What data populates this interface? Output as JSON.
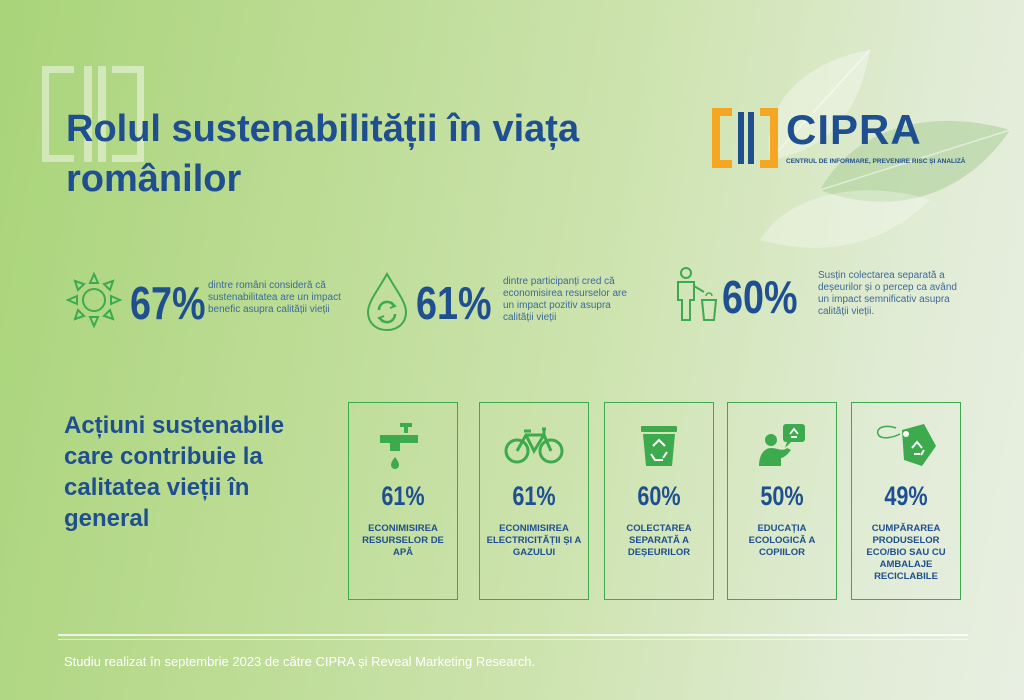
{
  "title": "Rolul sustenabilității în viața românilor",
  "logo": {
    "name": "CIPRA",
    "subtitle": "CENTRUL DE INFORMARE, PREVENIRE RISC ȘI ANALIZĂ"
  },
  "stats": [
    {
      "value": "67%",
      "icon": "sun-icon",
      "text": "dintre români consideră că sustenabilitatea are un impact benefic asupra calității vieții"
    },
    {
      "value": "61%",
      "icon": "water-drop-recycle-icon",
      "text": "dintre participanți cred că economisirea resurselor are un impact pozitiv asupra calității vieții"
    },
    {
      "value": "60%",
      "icon": "person-recycling-bin-icon",
      "text": "Susțin colectarea separată a deșeurilor și o percep ca având un impact semnificativ asupra calității vieții."
    }
  ],
  "section_title": "Acțiuni sustenabile care contribuie la calitatea vieții în general",
  "actions": [
    {
      "value": "61%",
      "icon": "water-tap-icon",
      "label": "ECONIMISIREA RESURSELOR DE APĂ"
    },
    {
      "value": "61%",
      "icon": "bicycle-icon",
      "label": "ECONIMISIREA ELECTRICITĂȚII ȘI A GAZULUI"
    },
    {
      "value": "60%",
      "icon": "recycle-bin-icon",
      "label": "COLECTAREA SEPARATĂ A DEȘEURILOR"
    },
    {
      "value": "50%",
      "icon": "education-recycle-icon",
      "label": "EDUCAȚIA ECOLOGICĂ A COPIILOR"
    },
    {
      "value": "49%",
      "icon": "eco-tag-icon",
      "label": "CUMPĂRAREA PRODUSELOR ECO/BIO SAU CU AMBALAJE RECICLABILE"
    }
  ],
  "footer": "Studiu realizat în septembrie 2023 de către CIPRA și Reveal Marketing Research.",
  "colors": {
    "primary": "#1f4f8f",
    "green": "#3daa4e",
    "accent": "#f5a623"
  }
}
